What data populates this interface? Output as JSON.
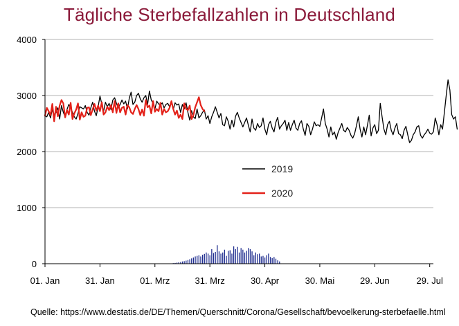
{
  "title": "Tägliche Sterbefallzahlen in Deutschland",
  "source": "Quelle: https://www.destatis.de/DE/Themen/Querschnitt/Corona/Gesellschaft/bevoelkerung-sterbefaelle.html",
  "colors": {
    "title": "#8b1a3a",
    "series_2019": "#000000",
    "series_2020": "#e32119",
    "bars": "#1f2d8f",
    "grid": "#b3b3b3"
  },
  "chart_data": {
    "type": "line",
    "title": "Tägliche Sterbefallzahlen in Deutschland",
    "xlabel": "",
    "ylabel": "",
    "ylim": [
      0,
      4000
    ],
    "yticks": [
      "0",
      "1000",
      "2000",
      "3000",
      "4000"
    ],
    "xlim": [
      "2020-01-01",
      "2020-07-31"
    ],
    "xticks": [
      {
        "date": "2020-01-01",
        "label": "01. Jan"
      },
      {
        "date": "2020-01-31",
        "label": "31. Jan"
      },
      {
        "date": "2020-03-01",
        "label": "01. Mrz"
      },
      {
        "date": "2020-03-31",
        "label": "31. Mrz"
      },
      {
        "date": "2020-04-30",
        "label": "30. Apr"
      },
      {
        "date": "2020-05-30",
        "label": "30. Mai"
      },
      {
        "date": "2020-06-29",
        "label": "29. Jun"
      },
      {
        "date": "2020-07-29",
        "label": "29. Jul"
      }
    ],
    "grid": "horizontal",
    "legend_position": "center",
    "series": [
      {
        "name": "2019",
        "color": "#000000",
        "start_date": "2020-01-01",
        "values": [
          2640,
          2620,
          2700,
          2600,
          2760,
          2650,
          2700,
          2780,
          2580,
          2820,
          2700,
          2620,
          2750,
          2840,
          2780,
          2700,
          2620,
          2580,
          2680,
          2800,
          2780,
          2760,
          2820,
          2700,
          2650,
          2780,
          2880,
          2720,
          2640,
          2800,
          2990,
          2850,
          2720,
          2880,
          2800,
          2860,
          2750,
          2920,
          2960,
          2860,
          2780,
          2840,
          2920,
          2850,
          2900,
          2760,
          2950,
          3060,
          2840,
          2880,
          3000,
          3040,
          2940,
          2880,
          2960,
          3000,
          2840,
          3080,
          2920,
          2860,
          2760,
          2900,
          2850,
          2830,
          2870,
          2780,
          2840,
          2860,
          2800,
          2880,
          2750,
          2870,
          2830,
          2850,
          2700,
          2840,
          2760,
          2870,
          2700,
          2560,
          2730,
          2620,
          2590,
          2760,
          2600,
          2640,
          2700,
          2740,
          2580,
          2640,
          2500,
          2620,
          2700,
          2800,
          2700,
          2600,
          2680,
          2480,
          2460,
          2620,
          2540,
          2400,
          2560,
          2440,
          2630,
          2700,
          2600,
          2520,
          2440,
          2520,
          2600,
          2470,
          2350,
          2580,
          2420,
          2380,
          2500,
          2430,
          2460,
          2600,
          2400,
          2300,
          2480,
          2540,
          2420,
          2350,
          2520,
          2610,
          2400,
          2460,
          2500,
          2560,
          2380,
          2520,
          2380,
          2480,
          2560,
          2420,
          2380,
          2500,
          2550,
          2400,
          2290,
          2500,
          2450,
          2300,
          2400,
          2530,
          2460,
          2480,
          2450,
          2600,
          2760,
          2500,
          2400,
          2260,
          2440,
          2300,
          2350,
          2220,
          2340,
          2420,
          2500,
          2380,
          2350,
          2430,
          2380,
          2290,
          2240,
          2320,
          2460,
          2620,
          2400,
          2260,
          2440,
          2300,
          2470,
          2650,
          2280,
          2420,
          2480,
          2320,
          2380,
          2860,
          2620,
          2400,
          2300,
          2480,
          2540,
          2380,
          2300,
          2420,
          2500,
          2320,
          2300,
          2230,
          2380,
          2450,
          2300,
          2160,
          2200,
          2300,
          2350,
          2440,
          2460,
          2290,
          2240,
          2300,
          2340,
          2400,
          2330,
          2310,
          2350,
          2600,
          2480,
          2300,
          2480,
          2400,
          2700,
          3000,
          3280,
          3100,
          2660,
          2580,
          2620,
          2400
        ]
      },
      {
        "name": "2020",
        "color": "#e32119",
        "start_date": "2020-01-01",
        "values": [
          2640,
          2780,
          2720,
          2650,
          2850,
          2540,
          2800,
          2630,
          2820,
          2920,
          2860,
          2610,
          2740,
          2660,
          2870,
          2580,
          2680,
          2750,
          2860,
          2570,
          2700,
          2620,
          2640,
          2780,
          2790,
          2650,
          2750,
          2850,
          2730,
          2820,
          2720,
          2880,
          2660,
          2700,
          2800,
          2740,
          2830,
          2700,
          2900,
          2690,
          2860,
          2700,
          2780,
          2800,
          2660,
          2830,
          2790,
          2700,
          2670,
          2760,
          2830,
          2760,
          2650,
          2750,
          2640,
          2920,
          2790,
          2820,
          2680,
          2900,
          2710,
          2760,
          2720,
          2870,
          2660,
          2760,
          2700,
          2720,
          2780,
          2900,
          2760,
          2660,
          2730,
          2600,
          2660,
          2580,
          2860,
          2760,
          2740,
          2820,
          2580,
          2650,
          2790,
          2880,
          2970,
          2830,
          2760,
          2720
        ]
      }
    ],
    "bars": {
      "name": "",
      "color": "#1f2d8f",
      "start_date": "2020-03-10",
      "values": [
        5,
        10,
        14,
        20,
        25,
        30,
        40,
        45,
        55,
        65,
        80,
        95,
        110,
        130,
        140,
        150,
        130,
        160,
        175,
        200,
        180,
        150,
        260,
        190,
        210,
        330,
        220,
        180,
        200,
        250,
        140,
        230,
        240,
        180,
        310,
        260,
        300,
        200,
        280,
        250,
        200,
        230,
        280,
        260,
        220,
        150,
        200,
        170,
        180,
        130,
        140,
        110,
        150,
        180,
        120,
        100,
        120,
        90,
        60,
        40
      ]
    }
  },
  "legend": {
    "entries": [
      {
        "label": "2019",
        "color": "#000000"
      },
      {
        "label": "2020",
        "color": "#e32119"
      }
    ]
  }
}
